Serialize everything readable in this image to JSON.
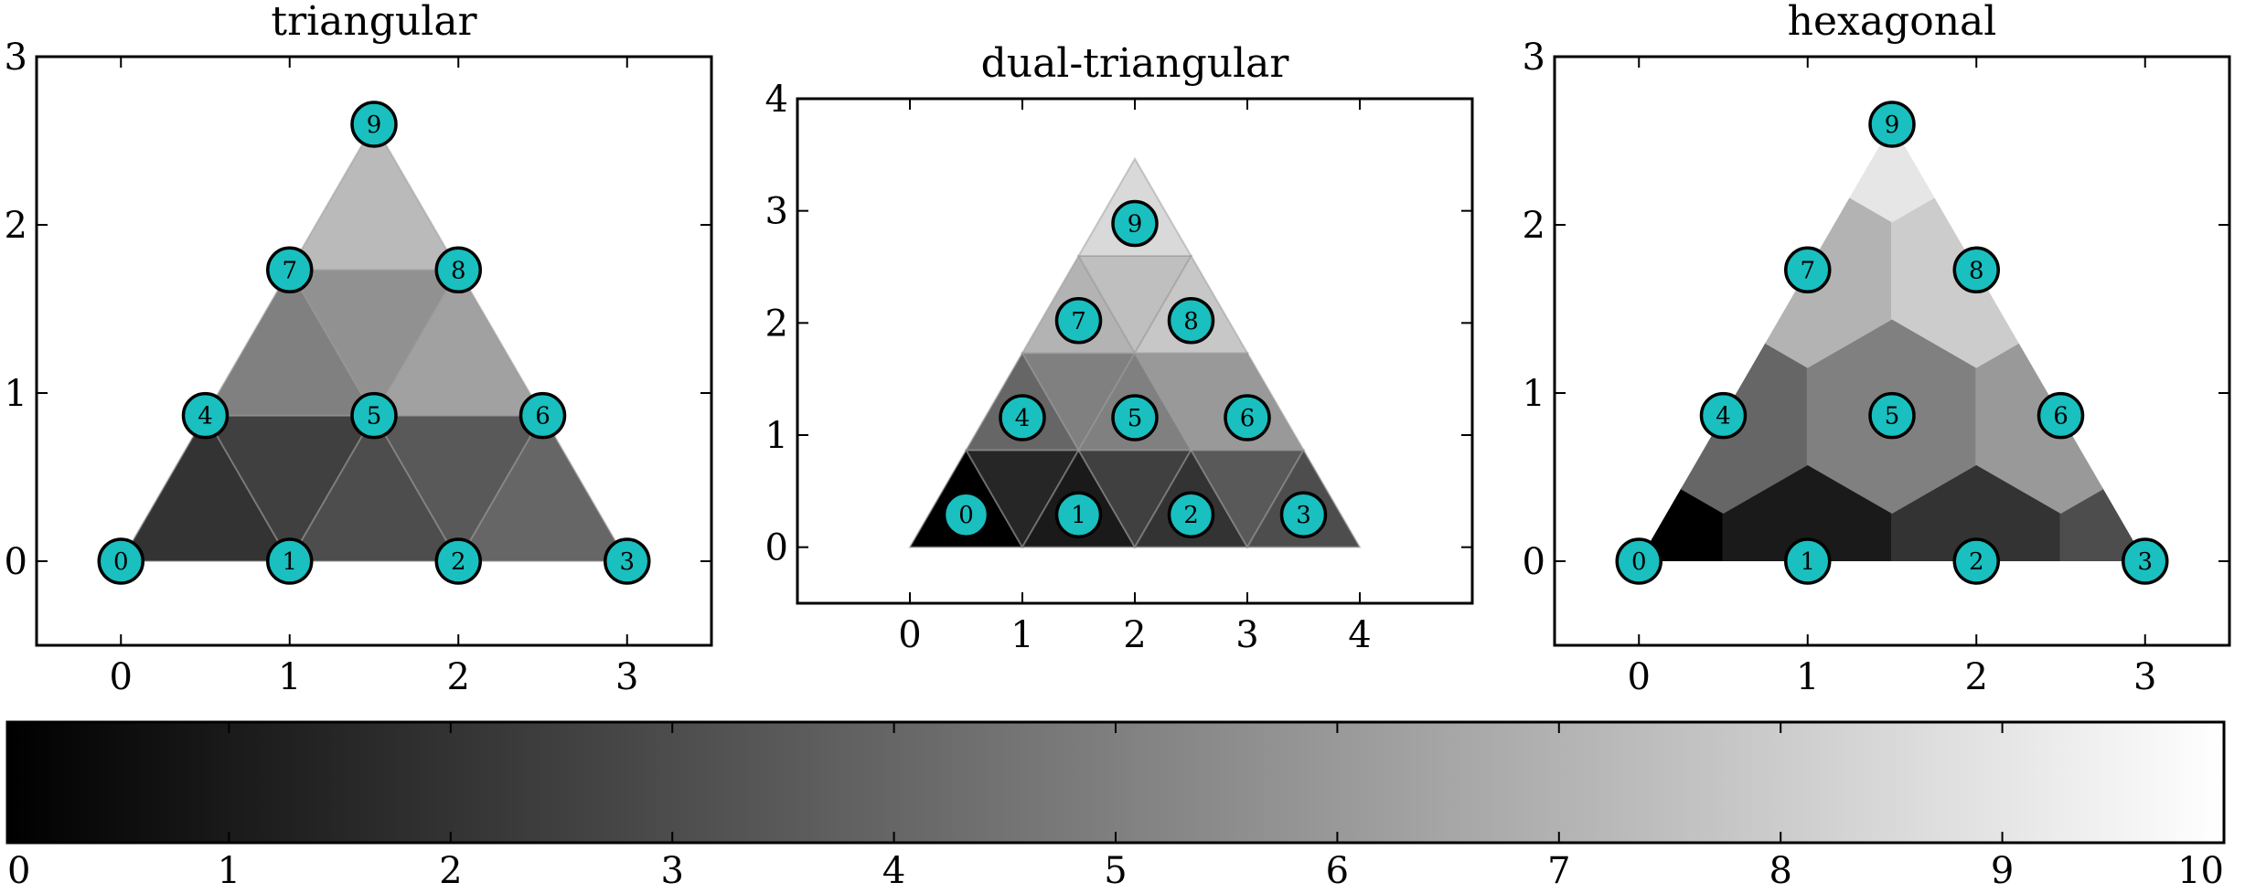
{
  "chart_data": [
    {
      "type": "heatmap",
      "title": "triangular",
      "xlim": [
        -0.5,
        3.5
      ],
      "ylim": [
        -0.5,
        3.0
      ],
      "xticks": [
        0,
        1,
        2,
        3
      ],
      "yticks": [
        0,
        1,
        2,
        3
      ],
      "nodes": [
        {
          "id": "0",
          "x": 0.0,
          "y": 0.0
        },
        {
          "id": "1",
          "x": 1.0,
          "y": 0.0
        },
        {
          "id": "2",
          "x": 2.0,
          "y": 0.0
        },
        {
          "id": "3",
          "x": 3.0,
          "y": 0.0
        },
        {
          "id": "4",
          "x": 0.5,
          "y": 0.866
        },
        {
          "id": "5",
          "x": 1.5,
          "y": 0.866
        },
        {
          "id": "6",
          "x": 2.5,
          "y": 0.866
        },
        {
          "id": "7",
          "x": 1.0,
          "y": 1.732
        },
        {
          "id": "8",
          "x": 2.0,
          "y": 1.732
        },
        {
          "id": "9",
          "x": 1.5,
          "y": 2.598
        }
      ],
      "cells": [
        {
          "nodes": [
            "0",
            "1",
            "4"
          ],
          "value": 2.0
        },
        {
          "nodes": [
            "1",
            "4",
            "5"
          ],
          "value": 2.5
        },
        {
          "nodes": [
            "1",
            "2",
            "5"
          ],
          "value": 3.0
        },
        {
          "nodes": [
            "2",
            "5",
            "6"
          ],
          "value": 3.5
        },
        {
          "nodes": [
            "2",
            "3",
            "6"
          ],
          "value": 4.0
        },
        {
          "nodes": [
            "4",
            "5",
            "7"
          ],
          "value": 5.0
        },
        {
          "nodes": [
            "5",
            "7",
            "8"
          ],
          "value": 5.7
        },
        {
          "nodes": [
            "5",
            "6",
            "8"
          ],
          "value": 6.3
        },
        {
          "nodes": [
            "7",
            "8",
            "9"
          ],
          "value": 7.3
        }
      ]
    },
    {
      "type": "heatmap",
      "title": "dual-triangular",
      "xlim": [
        -1.0,
        5.0
      ],
      "ylim": [
        -0.5,
        4.0
      ],
      "xticks": [
        0,
        1,
        2,
        3,
        4
      ],
      "yticks": [
        0,
        1,
        2,
        3,
        4
      ],
      "nodes": [
        {
          "id": "0",
          "x": 0.5,
          "y": 0.289
        },
        {
          "id": "1",
          "x": 1.5,
          "y": 0.289
        },
        {
          "id": "2",
          "x": 2.5,
          "y": 0.289
        },
        {
          "id": "3",
          "x": 3.5,
          "y": 0.289
        },
        {
          "id": "4",
          "x": 1.0,
          "y": 1.155
        },
        {
          "id": "5",
          "x": 2.0,
          "y": 1.155
        },
        {
          "id": "6",
          "x": 3.0,
          "y": 1.155
        },
        {
          "id": "7",
          "x": 1.5,
          "y": 2.021
        },
        {
          "id": "8",
          "x": 2.5,
          "y": 2.021
        },
        {
          "id": "9",
          "x": 2.0,
          "y": 2.887
        }
      ],
      "cells": [
        {
          "points": [
            [
              0,
              0
            ],
            [
              1,
              0
            ],
            [
              0.5,
              0.866
            ]
          ],
          "value": 0.0
        },
        {
          "points": [
            [
              1,
              0
            ],
            [
              0.5,
              0.866
            ],
            [
              1.5,
              0.866
            ]
          ],
          "value": 1.5
        },
        {
          "points": [
            [
              1,
              0
            ],
            [
              2,
              0
            ],
            [
              1.5,
              0.866
            ]
          ],
          "value": 1.0
        },
        {
          "points": [
            [
              2,
              0
            ],
            [
              1.5,
              0.866
            ],
            [
              2.5,
              0.866
            ]
          ],
          "value": 2.5
        },
        {
          "points": [
            [
              2,
              0
            ],
            [
              3,
              0
            ],
            [
              2.5,
              0.866
            ]
          ],
          "value": 2.0
        },
        {
          "points": [
            [
              3,
              0
            ],
            [
              2.5,
              0.866
            ],
            [
              3.5,
              0.866
            ]
          ],
          "value": 3.5
        },
        {
          "points": [
            [
              3,
              0
            ],
            [
              4,
              0
            ],
            [
              3.5,
              0.866
            ]
          ],
          "value": 3.0
        },
        {
          "points": [
            [
              0.5,
              0.866
            ],
            [
              1.5,
              0.866
            ],
            [
              1,
              1.732
            ]
          ],
          "value": 4.0
        },
        {
          "points": [
            [
              1.5,
              0.866
            ],
            [
              1,
              1.732
            ],
            [
              2,
              1.732
            ]
          ],
          "value": 5.0
        },
        {
          "points": [
            [
              1.5,
              0.866
            ],
            [
              2.5,
              0.866
            ],
            [
              2,
              1.732
            ]
          ],
          "value": 5.0
        },
        {
          "points": [
            [
              2.5,
              0.866
            ],
            [
              2,
              1.732
            ],
            [
              3,
              1.732
            ]
          ],
          "value": 6.0
        },
        {
          "points": [
            [
              2.5,
              0.866
            ],
            [
              3.5,
              0.866
            ],
            [
              3,
              1.732
            ]
          ],
          "value": 6.0
        },
        {
          "points": [
            [
              1,
              1.732
            ],
            [
              2,
              1.732
            ],
            [
              1.5,
              2.598
            ]
          ],
          "value": 7.0
        },
        {
          "points": [
            [
              2,
              1.732
            ],
            [
              1.5,
              2.598
            ],
            [
              2.5,
              2.598
            ]
          ],
          "value": 7.5
        },
        {
          "points": [
            [
              2,
              1.732
            ],
            [
              3,
              1.732
            ],
            [
              2.5,
              2.598
            ]
          ],
          "value": 7.8
        },
        {
          "points": [
            [
              1.5,
              2.598
            ],
            [
              2.5,
              2.598
            ],
            [
              2,
              3.464
            ]
          ],
          "value": 8.5
        }
      ]
    },
    {
      "type": "heatmap",
      "title": "hexagonal",
      "xlim": [
        -0.5,
        3.5
      ],
      "ylim": [
        -0.5,
        3.0
      ],
      "xticks": [
        0,
        1,
        2,
        3
      ],
      "yticks": [
        0,
        1,
        2,
        3
      ],
      "nodes": [
        {
          "id": "0",
          "x": 0.0,
          "y": 0.0
        },
        {
          "id": "1",
          "x": 1.0,
          "y": 0.0
        },
        {
          "id": "2",
          "x": 2.0,
          "y": 0.0
        },
        {
          "id": "3",
          "x": 3.0,
          "y": 0.0
        },
        {
          "id": "4",
          "x": 0.5,
          "y": 0.866
        },
        {
          "id": "5",
          "x": 1.5,
          "y": 0.866
        },
        {
          "id": "6",
          "x": 2.5,
          "y": 0.866
        },
        {
          "id": "7",
          "x": 1.0,
          "y": 1.732
        },
        {
          "id": "8",
          "x": 2.0,
          "y": 1.732
        },
        {
          "id": "9",
          "x": 1.5,
          "y": 2.598
        }
      ],
      "cells": [
        {
          "node": "0",
          "value": 0.0
        },
        {
          "node": "1",
          "value": 1.0
        },
        {
          "node": "2",
          "value": 2.0
        },
        {
          "node": "3",
          "value": 3.0
        },
        {
          "node": "4",
          "value": 4.0
        },
        {
          "node": "5",
          "value": 5.0
        },
        {
          "node": "6",
          "value": 6.0
        },
        {
          "node": "7",
          "value": 7.0
        },
        {
          "node": "8",
          "value": 8.0
        },
        {
          "node": "9",
          "value": 9.0
        }
      ]
    }
  ],
  "colorbar": {
    "min": 0,
    "max": 10,
    "ticks": [
      "0",
      "1",
      "2",
      "3",
      "4",
      "5",
      "6",
      "7",
      "8",
      "9",
      "10"
    ],
    "colormap": "gray",
    "color_low": "#000000",
    "color_high": "#ffffff"
  },
  "colors": {
    "node_fill": "#1abfbf",
    "node_stroke": "#000000",
    "axis": "#000000"
  }
}
